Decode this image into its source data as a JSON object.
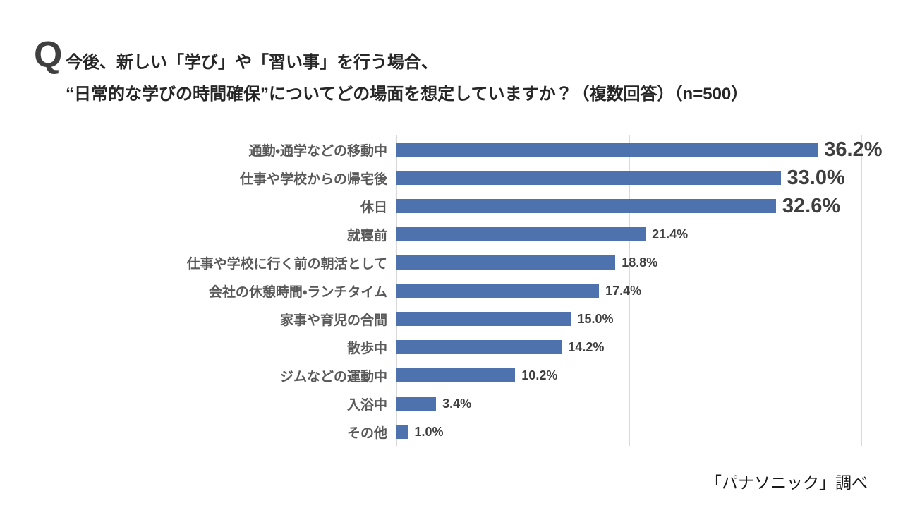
{
  "header": {
    "q_label": "Q",
    "title_line1": "今後、新しい「学び」や「習い事」を行う場合、",
    "title_line2": "“日常的な学びの時間確保”についてどの場面を想定していますか？（複数回答）（n=500）"
  },
  "chart_data": {
    "type": "bar",
    "orientation": "horizontal",
    "title": "今後、新しい「学び」や「習い事」を行う場合、“日常的な学びの時間確保”についてどの場面を想定していますか？（複数回答）（n=500）",
    "sample_size_label": "n=500",
    "categories": [
      "通勤・通学などの移動中",
      "仕事や学校からの帰宅後",
      "休日",
      "就寝前",
      "仕事や学校に行く前の朝活として",
      "会社の休憩時間・ランチタイム",
      "家事や育児の合間",
      "散歩中",
      "ジムなどの運動中",
      "入浴中",
      "その他"
    ],
    "values": [
      36.2,
      33.0,
      32.6,
      21.4,
      18.8,
      17.4,
      15.0,
      14.2,
      10.2,
      3.4,
      1.0
    ],
    "value_labels": [
      "36.2%",
      "33.0%",
      "32.6%",
      "21.4%",
      "18.8%",
      "17.4%",
      "15.0%",
      "14.2%",
      "10.2%",
      "3.4%",
      "1.0%"
    ],
    "emphasized": [
      true,
      true,
      true,
      false,
      false,
      false,
      false,
      false,
      false,
      false,
      false
    ],
    "xlabel": "",
    "ylabel": "",
    "xlim": [
      0,
      40
    ],
    "gridline_step": 20,
    "grid": true,
    "legend": false,
    "bar_color": "#4D72AD",
    "gridline_color": "#D9D9D9",
    "label_color": "#595959",
    "value_color": "#3F3F3F"
  },
  "footer": {
    "source": "「パナソニック」調べ"
  }
}
